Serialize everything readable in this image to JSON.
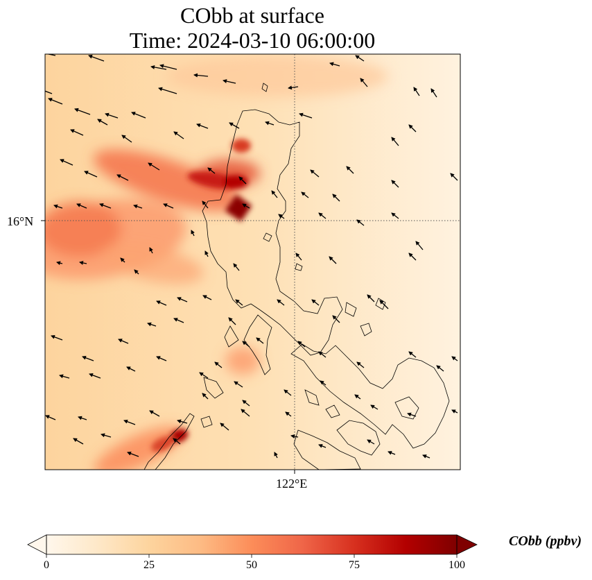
{
  "title": {
    "line1": "CObb at surface",
    "line2": "Time: 2024-03-10 06:00:00"
  },
  "map": {
    "lat_label": "16°N",
    "lon_label": "122°E",
    "gridline_lat": 16,
    "gridline_lon": 122,
    "gridlines": "dotted",
    "features": [
      "coastlines",
      "wind-vectors"
    ]
  },
  "colorbar": {
    "units": "CObb (ppbv)",
    "ticks": [
      "0",
      "25",
      "50",
      "75",
      "100"
    ],
    "range": [
      0,
      100
    ],
    "extend": "both",
    "colormap": "OrRd",
    "colors": [
      "#fff7ec",
      "#fee8c8",
      "#fdd49e",
      "#fdbb84",
      "#fc8d59",
      "#ef6548",
      "#d7301f",
      "#b30000",
      "#7f0000"
    ]
  }
}
